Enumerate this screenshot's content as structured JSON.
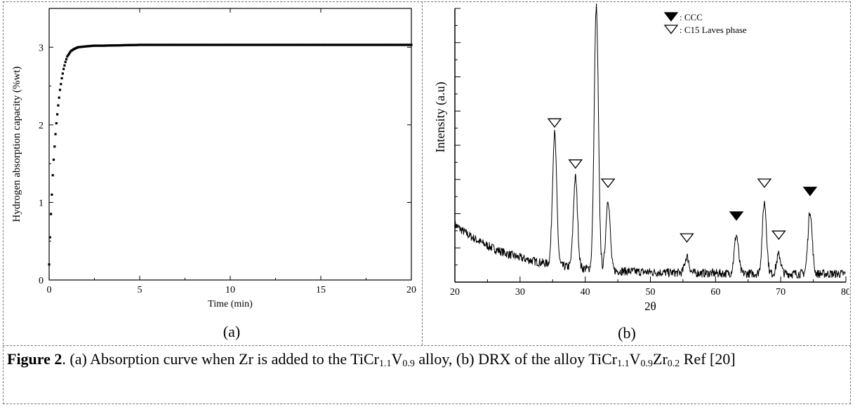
{
  "chart_data": [
    {
      "type": "scatter",
      "xlabel": "Time (min)",
      "ylabel": "Hydrogen absorption capacity (%wt)",
      "xlim": [
        0,
        20
      ],
      "ylim": [
        0,
        3.5
      ],
      "xticks": [
        "0",
        "5",
        "10",
        "15",
        "20"
      ],
      "yticks": [
        "0",
        "1",
        "2",
        "3"
      ],
      "grid": false,
      "series": [
        {
          "values": [
            [
              0.0,
              0.2
            ],
            [
              0.05,
              0.55
            ],
            [
              0.1,
              0.85
            ],
            [
              0.15,
              1.1
            ],
            [
              0.2,
              1.35
            ],
            [
              0.25,
              1.55
            ],
            [
              0.3,
              1.72
            ],
            [
              0.35,
              1.88
            ],
            [
              0.4,
              2.02
            ],
            [
              0.5,
              2.25
            ],
            [
              0.6,
              2.45
            ],
            [
              0.7,
              2.6
            ],
            [
              0.8,
              2.72
            ],
            [
              0.9,
              2.81
            ],
            [
              1.0,
              2.88
            ],
            [
              1.2,
              2.95
            ],
            [
              1.4,
              2.98
            ],
            [
              1.6,
              3.0
            ],
            [
              2.0,
              3.01
            ],
            [
              2.5,
              3.02
            ],
            [
              3.0,
              3.02
            ],
            [
              5.0,
              3.03
            ],
            [
              8.0,
              3.03
            ],
            [
              10.0,
              3.03
            ],
            [
              12.0,
              3.03
            ],
            [
              15.0,
              3.03
            ],
            [
              18.0,
              3.03
            ],
            [
              20.0,
              3.03
            ]
          ]
        }
      ]
    },
    {
      "type": "line",
      "xlabel": "2θ",
      "ylabel": "Intensity (a.u)",
      "xlim": [
        20,
        80
      ],
      "ylim": [
        0,
        100
      ],
      "xticks": [
        "20",
        "30",
        "40",
        "50",
        "60",
        "70",
        "80"
      ],
      "grid": false,
      "baseline": {
        "start": 21,
        "end": 3
      },
      "peaks": [
        {
          "x": 35.3,
          "height": 48,
          "marker": "open"
        },
        {
          "x": 38.5,
          "height": 33,
          "marker": "open"
        },
        {
          "x": 41.7,
          "height": 96,
          "marker": "filled"
        },
        {
          "x": 43.5,
          "height": 26,
          "marker": "open"
        },
        {
          "x": 55.6,
          "height": 6,
          "marker": "open"
        },
        {
          "x": 63.2,
          "height": 14,
          "marker": "filled"
        },
        {
          "x": 67.5,
          "height": 26,
          "marker": "open"
        },
        {
          "x": 69.7,
          "height": 7,
          "marker": "open"
        },
        {
          "x": 74.5,
          "height": 23,
          "marker": "filled"
        }
      ],
      "legend": [
        {
          "marker": "filled",
          "label": ": CCC"
        },
        {
          "marker": "open",
          "label": ": C15 Laves phase"
        }
      ],
      "legend_position": "top-right"
    }
  ],
  "labels": {
    "a": "(a)",
    "b": "(b)"
  },
  "caption": {
    "figure_label": "Figure 2",
    "text_1": ". (a) Absorption curve when Zr is added to the TiCr",
    "sub_1": "1.1",
    "text_2": "V",
    "sub_2": "0.9",
    "text_3": " alloy, (b) DRX of the alloy TiCr",
    "sub_3": "1.1",
    "text_4": "V",
    "sub_4": "0.9",
    "text_5": "Zr",
    "sub_5": "0.2",
    "text_6": " Ref [20]"
  }
}
